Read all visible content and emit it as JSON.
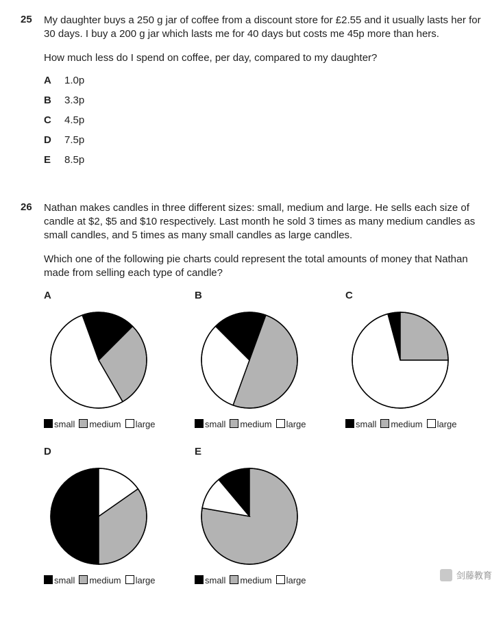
{
  "q25": {
    "number": "25",
    "para1": "My daughter buys a 250 g jar of coffee from a discount store for £2.55 and it usually lasts her for 30 days. I buy a 200 g jar which lasts me for 40 days but costs me 45p more than hers.",
    "para2": "How much less do I spend on coffee, per day, compared to my daughter?",
    "options": [
      {
        "letter": "A",
        "text": "1.0p"
      },
      {
        "letter": "B",
        "text": "3.3p"
      },
      {
        "letter": "C",
        "text": "4.5p"
      },
      {
        "letter": "D",
        "text": "7.5p"
      },
      {
        "letter": "E",
        "text": "8.5p"
      }
    ]
  },
  "q26": {
    "number": "26",
    "para1": "Nathan makes candles in three different sizes: small, medium and large. He sells each size of candle at $2, $5 and $10 respectively. Last month he sold 3 times as many medium candles as small candles, and 5 times as many small candles as large candles.",
    "para2": "Which one of the following pie charts could represent the total amounts of money that Nathan made from selling each type of candle?",
    "legend": {
      "small": "small",
      "medium": "medium",
      "large": "large"
    },
    "colors": {
      "small": "#000000",
      "medium": "#b3b3b3",
      "large": "#ffffff",
      "stroke": "#000000"
    },
    "pie_radius": 70,
    "pie_size": 160,
    "charts": [
      {
        "letter": "A",
        "slices": [
          {
            "key": "small",
            "start": -20,
            "end": 45
          },
          {
            "key": "medium",
            "start": 45,
            "end": 150
          },
          {
            "key": "large",
            "start": 150,
            "end": 340
          }
        ]
      },
      {
        "letter": "B",
        "slices": [
          {
            "key": "small",
            "start": -45,
            "end": 20
          },
          {
            "key": "medium",
            "start": 20,
            "end": 200
          },
          {
            "key": "large",
            "start": 200,
            "end": 315
          }
        ]
      },
      {
        "letter": "C",
        "slices": [
          {
            "key": "small",
            "start": -15,
            "end": 0
          },
          {
            "key": "medium",
            "start": 0,
            "end": 90
          },
          {
            "key": "large",
            "start": 90,
            "end": 345
          }
        ]
      },
      {
        "letter": "D",
        "slices": [
          {
            "key": "small",
            "start": 180,
            "end": 360
          },
          {
            "key": "medium",
            "start": 55,
            "end": 180
          },
          {
            "key": "large",
            "start": 0,
            "end": 55
          }
        ]
      },
      {
        "letter": "E",
        "slices": [
          {
            "key": "small",
            "start": -40,
            "end": 0
          },
          {
            "key": "medium",
            "start": 0,
            "end": 280
          },
          {
            "key": "large",
            "start": 280,
            "end": 320
          }
        ]
      }
    ]
  },
  "watermark": "剑藤教育"
}
